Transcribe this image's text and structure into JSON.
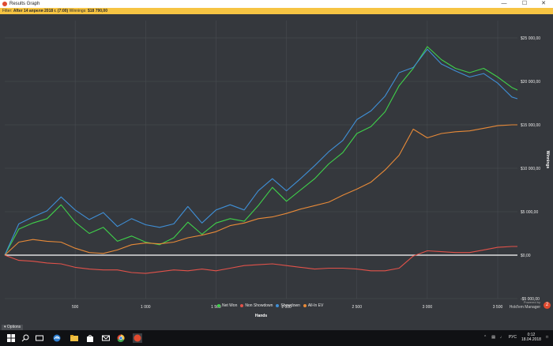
{
  "window": {
    "title": "Results Graph",
    "controls": [
      "—",
      "☐",
      "✕"
    ]
  },
  "filter_bar": {
    "label": "Filter:",
    "filter_value": "After 14 апреля 2018 г. (7:00)",
    "winnings_label": "Winnings:",
    "winnings_value": "$18 790,00"
  },
  "chart_data": {
    "type": "line",
    "xlabel": "Hands",
    "ylabel": "Winnings",
    "x_ticks": [
      500,
      1000,
      1500,
      2000,
      2500,
      3000,
      3500
    ],
    "x_tick_labels": [
      "500",
      "1 000",
      "1 500",
      "2 000",
      "2 500",
      "3 000",
      "3 500"
    ],
    "xlim": [
      0,
      3640
    ],
    "y_ticks": [
      -5000,
      0,
      5000,
      10000,
      15000,
      20000,
      25000
    ],
    "y_tick_labels": [
      "-$5 000,00",
      "$0,00",
      "$5 000,00",
      "$10 000,00",
      "$15 000,00",
      "$20 000,00",
      "$25 000,00"
    ],
    "ylim": [
      -5000,
      27000
    ],
    "x": [
      0,
      100,
      200,
      300,
      400,
      500,
      600,
      700,
      800,
      900,
      1000,
      1100,
      1200,
      1300,
      1400,
      1500,
      1600,
      1700,
      1800,
      1900,
      2000,
      2100,
      2200,
      2300,
      2400,
      2500,
      2600,
      2700,
      2800,
      2900,
      3000,
      3100,
      3200,
      3300,
      3400,
      3500,
      3600,
      3640
    ],
    "series": [
      {
        "name": "Net Won",
        "color": "#3fd14a",
        "values": [
          0,
          3000,
          3700,
          4200,
          5800,
          3800,
          2500,
          3200,
          1600,
          2200,
          1500,
          1200,
          2000,
          3800,
          2400,
          3700,
          4200,
          3900,
          5700,
          7800,
          6200,
          7500,
          8800,
          10500,
          11800,
          14000,
          14800,
          16500,
          19500,
          21500,
          24000,
          22500,
          21500,
          21000,
          21500,
          20500,
          19300,
          19000
        ]
      },
      {
        "name": "Non Showdown",
        "color": "#e2524a",
        "values": [
          0,
          -600,
          -700,
          -900,
          -1000,
          -1400,
          -1600,
          -1700,
          -1700,
          -2000,
          -2100,
          -1900,
          -1700,
          -1800,
          -1600,
          -1800,
          -1500,
          -1200,
          -1100,
          -1000,
          -1200,
          -1400,
          -1600,
          -1500,
          -1500,
          -1600,
          -1800,
          -1800,
          -1500,
          -100,
          500,
          400,
          300,
          300,
          600,
          900,
          1000,
          1000
        ]
      },
      {
        "name": "Showdown",
        "color": "#3f8fd6",
        "values": [
          0,
          3600,
          4400,
          5100,
          6700,
          5200,
          4100,
          4900,
          3300,
          4200,
          3500,
          3200,
          3600,
          5600,
          3700,
          5200,
          5800,
          5200,
          7400,
          8800,
          7400,
          8800,
          10300,
          11900,
          13200,
          15600,
          16600,
          18300,
          21000,
          21600,
          23700,
          22000,
          21200,
          20500,
          20900,
          19800,
          18200,
          18000
        ]
      },
      {
        "name": "All-In EV",
        "color": "#e88a38",
        "values": [
          0,
          1500,
          1800,
          1600,
          1500,
          800,
          300,
          200,
          600,
          1200,
          1400,
          1300,
          1500,
          2000,
          2300,
          2700,
          3400,
          3700,
          4200,
          4400,
          4800,
          5300,
          5700,
          6100,
          6900,
          7600,
          8400,
          9800,
          11500,
          14500,
          13500,
          14000,
          14200,
          14300,
          14600,
          14900,
          15000,
          15000
        ]
      }
    ]
  },
  "legend_items": [
    "Net Won",
    "Non Showdown",
    "Showdown",
    "All-In EV"
  ],
  "options_button": "Options",
  "powered": {
    "line1": "Powered by",
    "line2": "Hold'em Manager",
    "badge": "2"
  },
  "taskbar": {
    "tray_lang": "РУС",
    "time": "0:12",
    "date": "18.04.2018"
  }
}
